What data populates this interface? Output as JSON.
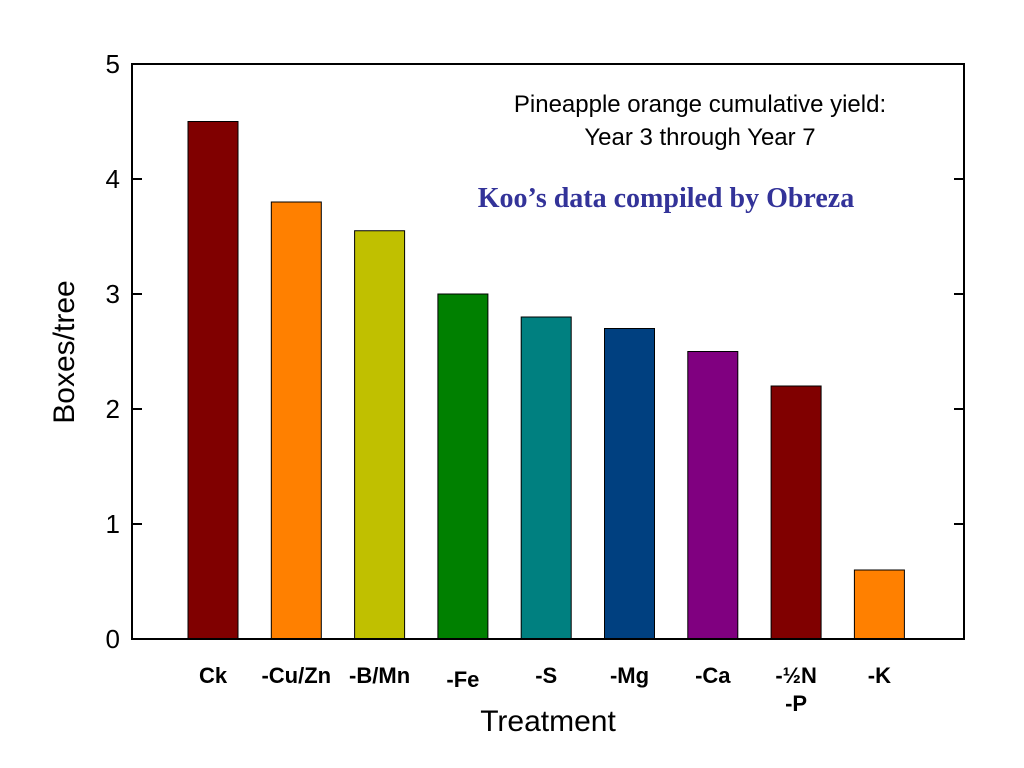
{
  "chart_data": {
    "type": "bar",
    "title_lines": [
      "Pineapple orange cumulative yield:",
      "Year 3 through Year 7"
    ],
    "subtitle": "Koo’s data compiled by Obreza",
    "xlabel": "Treatment",
    "ylabel": "Boxes/tree",
    "ylim": [
      0,
      5
    ],
    "yticks": [
      "0",
      "1",
      "2",
      "3",
      "4",
      "5"
    ],
    "categories": [
      [
        "Ck"
      ],
      [
        "-Cu/Zn"
      ],
      [
        "-B/Mn"
      ],
      [
        "-Fe"
      ],
      [
        "-S"
      ],
      [
        "-Mg"
      ],
      [
        "-Ca"
      ],
      [
        "-½N",
        "-P"
      ],
      [
        "-K"
      ]
    ],
    "values": [
      4.5,
      3.8,
      3.55,
      3.0,
      2.8,
      2.7,
      2.5,
      2.2,
      0.6
    ],
    "colors": [
      "#800000",
      "#ff8000",
      "#c0c000",
      "#008000",
      "#008080",
      "#004080",
      "#800080",
      "#800000",
      "#ff8000"
    ],
    "subtitle_color": "#333399",
    "grid": false,
    "legend": "none"
  }
}
